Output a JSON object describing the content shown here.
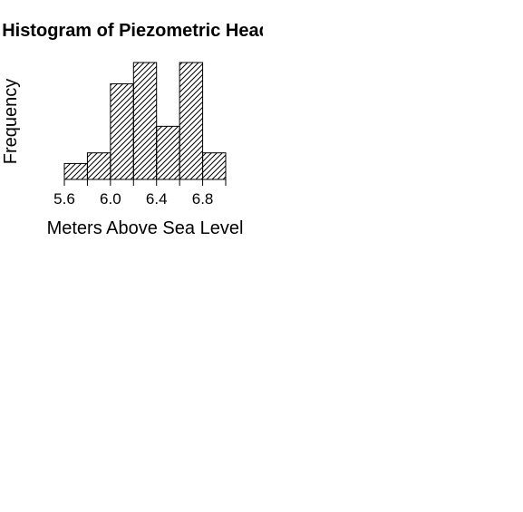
{
  "chart_data": {
    "type": "bar",
    "title": "Histogram of Piezometric Head H",
    "xlabel": "Meters Above Sea Level",
    "ylabel": "Frequency",
    "bin_edges": [
      5.6,
      5.8,
      6.0,
      6.2,
      6.4,
      6.6,
      6.8,
      7.0
    ],
    "values": [
      1.5,
      2.5,
      9,
      11,
      5,
      11,
      2.5
    ],
    "x_ticks": [
      5.6,
      6.0,
      6.4,
      6.8
    ],
    "x_tick_labels": [
      "5.6",
      "6.0",
      "6.4",
      "6.8"
    ],
    "ylim": [
      0,
      11
    ],
    "grid": false,
    "legend": "none",
    "fill": "diagonal-hatch",
    "colors": {
      "bar_stroke": "#000000",
      "hatch": "#000000",
      "background": "#ffffff"
    }
  }
}
